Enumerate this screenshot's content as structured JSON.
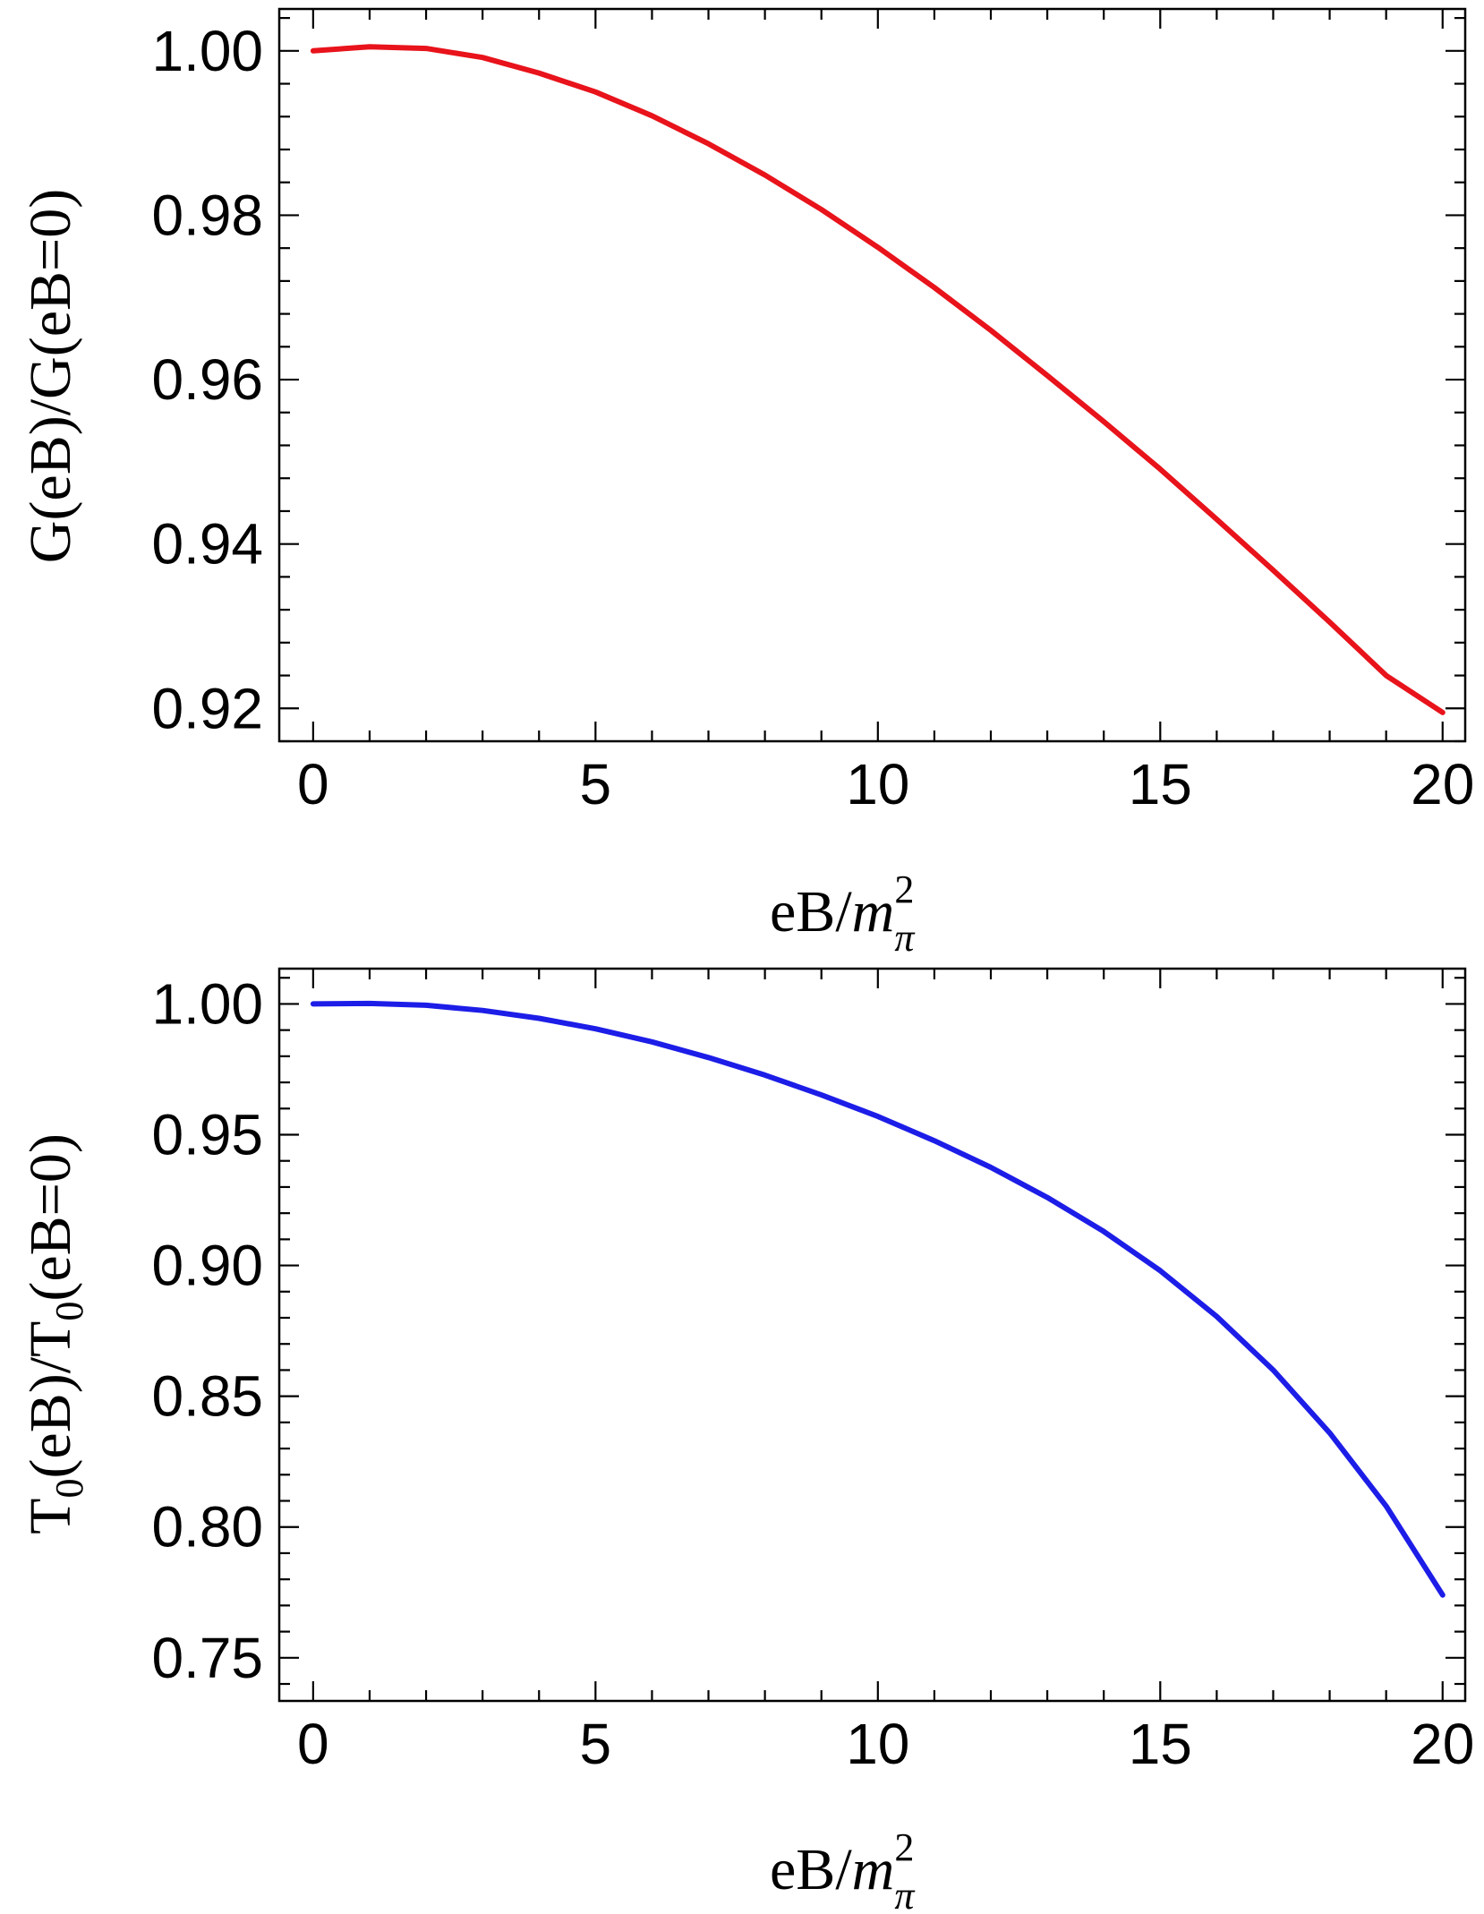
{
  "chart_data": [
    {
      "type": "line",
      "xlim": [
        -0.6,
        20.4
      ],
      "ylim": [
        0.916,
        1.0051
      ],
      "x_ticks": [
        0,
        5,
        10,
        15,
        20
      ],
      "x_tick_labels": [
        "0",
        "5",
        "10",
        "15",
        "20"
      ],
      "y_ticks": [
        0.92,
        0.94,
        0.96,
        0.98,
        1.0
      ],
      "y_tick_labels": [
        "0.92",
        "0.94",
        "0.96",
        "0.98",
        "1.00"
      ],
      "xlabel": {
        "main": "eB/",
        "italic": "m",
        "sup": "2",
        "sub": "π"
      },
      "ylabel": "G(eB)/G(eB=0)",
      "grid": false,
      "series": [
        {
          "color": "#e8131b",
          "x": [
            0,
            1,
            2,
            3,
            4,
            5,
            6,
            7,
            8,
            9,
            10,
            11,
            12,
            13,
            14,
            15,
            16,
            17,
            18,
            19,
            20
          ],
          "y": [
            1.0,
            1.0005,
            1.0003,
            0.9992,
            0.9973,
            0.995,
            0.9921,
            0.9887,
            0.9849,
            0.9807,
            0.9761,
            0.9712,
            0.966,
            0.9605,
            0.9549,
            0.9491,
            0.943,
            0.9368,
            0.9305,
            0.924,
            0.9195
          ]
        }
      ]
    },
    {
      "type": "line",
      "xlim": [
        -0.6,
        20.4
      ],
      "ylim": [
        0.7335,
        1.0135
      ],
      "x_ticks": [
        0,
        5,
        10,
        15,
        20
      ],
      "x_tick_labels": [
        "0",
        "5",
        "10",
        "15",
        "20"
      ],
      "y_ticks": [
        0.75,
        0.8,
        0.85,
        0.9,
        0.95,
        1.0
      ],
      "y_tick_labels": [
        "0.75",
        "0.80",
        "0.85",
        "0.90",
        "0.95",
        "1.00"
      ],
      "xlabel": {
        "main": "eB/",
        "italic": "m",
        "sup": "2",
        "sub": "π"
      },
      "ylabel": {
        "t1": "T",
        "s1": "0",
        "m": "(eB)/T",
        "s2": "0",
        "end": "(eB=0)"
      },
      "grid": false,
      "series": [
        {
          "color": "#1d1de8",
          "x": [
            0,
            1,
            2,
            3,
            4,
            5,
            6,
            7,
            8,
            9,
            10,
            11,
            12,
            13,
            14,
            15,
            16,
            17,
            18,
            19,
            20
          ],
          "y": [
            1.0,
            1.0002,
            0.9995,
            0.9975,
            0.9945,
            0.9905,
            0.9855,
            0.9795,
            0.9728,
            0.9652,
            0.957,
            0.9477,
            0.9375,
            0.926,
            0.913,
            0.898,
            0.8805,
            0.86,
            0.836,
            0.808,
            0.774
          ]
        }
      ]
    }
  ]
}
